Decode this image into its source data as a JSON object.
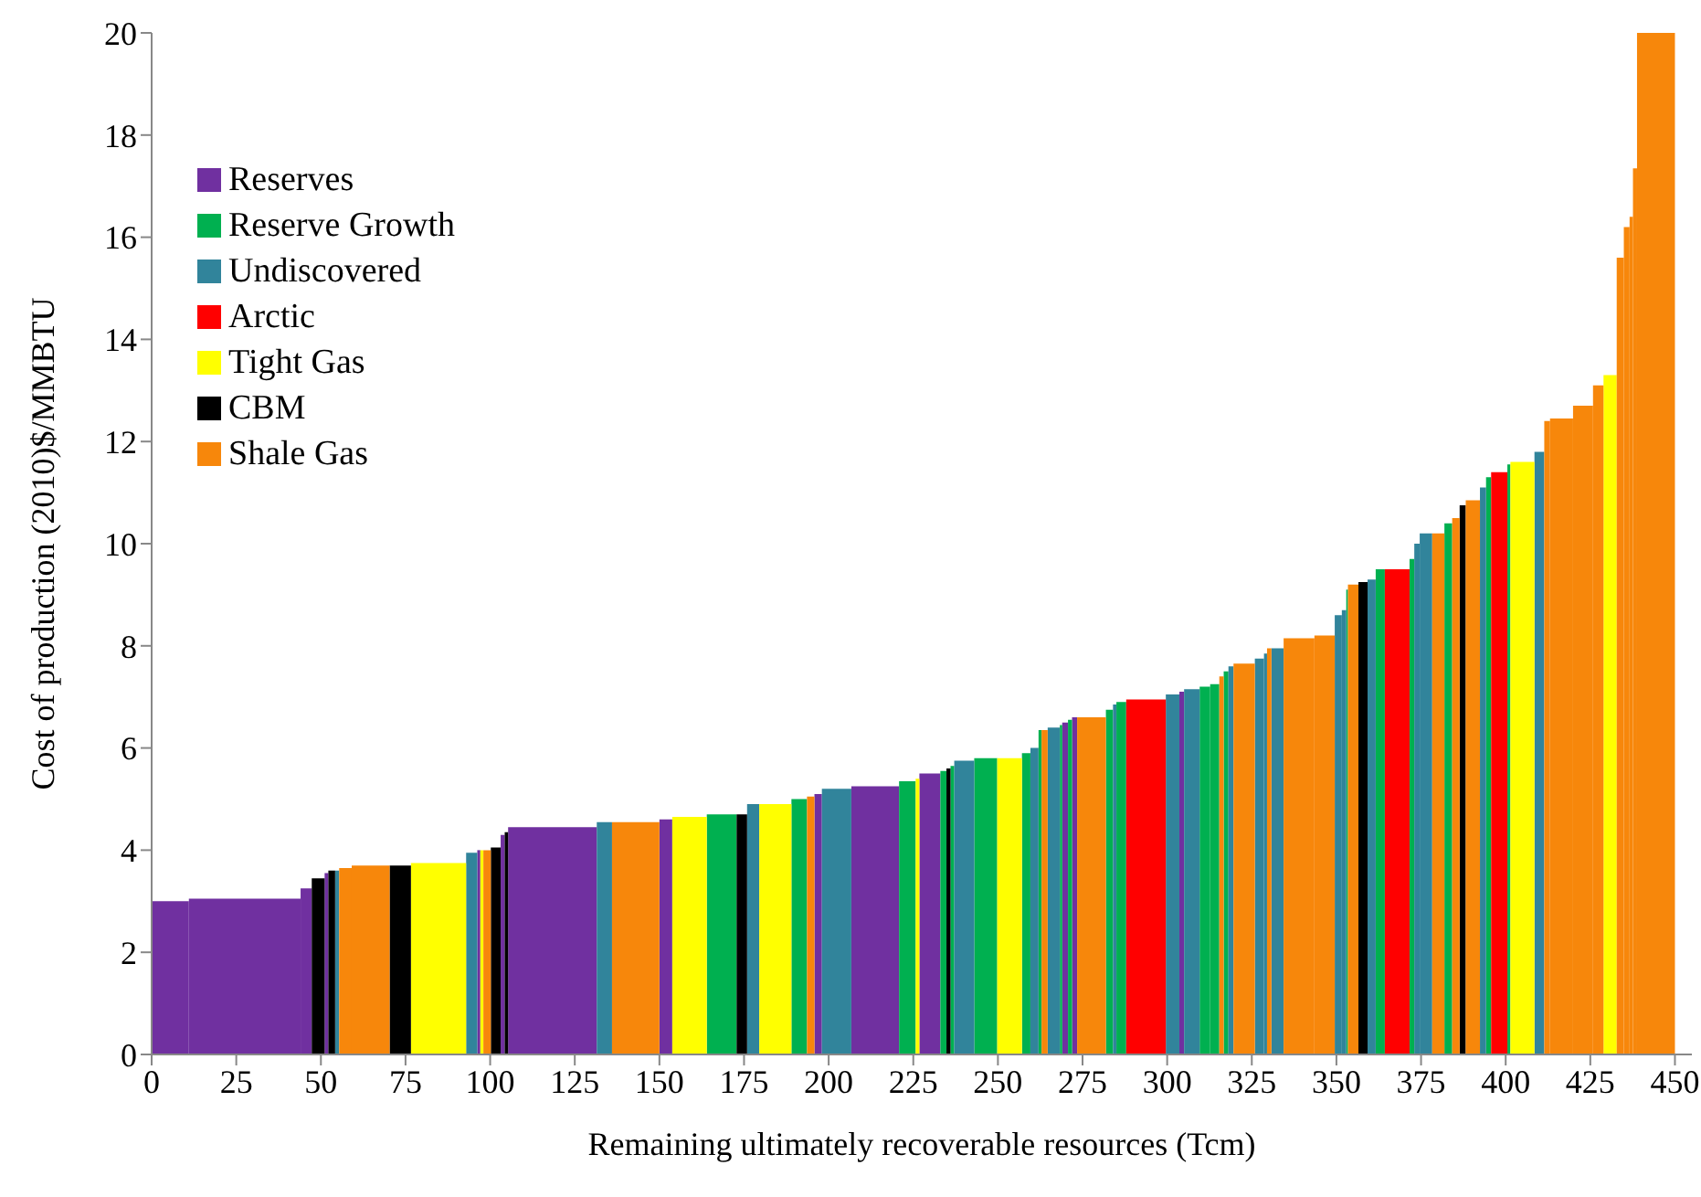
{
  "chart_data": {
    "type": "histogram",
    "xlabel": "Remaining ultimately recoverable resources (Tcm)",
    "ylabel": "Cost of production (2010)$/MMBTU",
    "xlim": [
      0,
      455
    ],
    "xticks": [
      0,
      25,
      50,
      75,
      100,
      125,
      150,
      175,
      200,
      225,
      250,
      275,
      300,
      325,
      350,
      375,
      400,
      425,
      450
    ],
    "ylim": [
      0,
      20
    ],
    "yticks": [
      0,
      2,
      4,
      6,
      8,
      10,
      12,
      14,
      16,
      18,
      20
    ],
    "legend": "top left",
    "bins": [
      0,
      11,
      44,
      47.3,
      51.1,
      52.2,
      54.2,
      55.4,
      59.1,
      70.3,
      76.6,
      92.9,
      96.2,
      97.1,
      98,
      100.2,
      103.1,
      104.3,
      105.3,
      131.5,
      136,
      150,
      153.8,
      164,
      172.8,
      175.9,
      179.5,
      189,
      193.6,
      195.8,
      198,
      206.7,
      220.8,
      225.7,
      226.8,
      233,
      234.8,
      236,
      237.1,
      243,
      249.8,
      257.1,
      259.6,
      262,
      262.9,
      264.7,
      268.3,
      269,
      270.7,
      271.9,
      273.4,
      281.9,
      284,
      285,
      287.9,
      299.6,
      303.6,
      305,
      309.6,
      312.7,
      315.4,
      316.7,
      318.1,
      319.6,
      325.9,
      328.6,
      329.5,
      330.8,
      334.4,
      343.5,
      349.5,
      351.6,
      352.9,
      353.4,
      356.5,
      359.2,
      361.6,
      364.3,
      371.6,
      373,
      374.6,
      378.3,
      381.9,
      384.2,
      386.4,
      388.2,
      392.4,
      394.2,
      395.7,
      400.5,
      401.4,
      408.5,
      411.4,
      413.1,
      419.9,
      425.8,
      428.9,
      432.8,
      434.9,
      436.6,
      437.6,
      438.8,
      450
    ],
    "series": [
      {
        "name": "Reserves",
        "color": "#7030a0",
        "values": [
          3.0,
          3.05,
          3.25,
          null,
          3.55,
          null,
          null,
          null,
          null,
          null,
          null,
          null,
          4,
          null,
          null,
          null,
          4.3,
          null,
          4.45,
          null,
          null,
          4.6,
          null,
          null,
          null,
          null,
          null,
          null,
          null,
          5.1,
          null,
          5.25,
          null,
          null,
          5.5,
          null,
          null,
          null,
          null,
          null,
          null,
          null,
          null,
          null,
          null,
          null,
          null,
          6.5,
          null,
          6.6,
          null,
          null,
          null,
          null,
          null,
          null,
          7.1,
          null,
          null,
          null,
          null,
          null,
          null,
          null,
          null,
          null,
          null,
          null,
          null,
          null,
          null,
          null,
          null,
          null,
          null,
          null,
          null,
          null,
          null,
          null,
          null,
          null,
          null,
          null,
          null,
          null,
          null,
          null,
          null,
          null,
          null,
          null,
          null,
          null,
          null,
          null,
          null,
          null,
          null,
          null,
          null,
          null
        ]
      },
      {
        "name": "Reserve Growth",
        "color": "#00b050",
        "values": [
          null,
          null,
          null,
          null,
          null,
          null,
          null,
          null,
          null,
          null,
          null,
          null,
          null,
          null,
          null,
          null,
          null,
          null,
          null,
          null,
          null,
          null,
          null,
          4.7,
          null,
          null,
          null,
          5,
          null,
          null,
          null,
          null,
          5.35,
          null,
          null,
          5.55,
          null,
          5.65,
          null,
          5.8,
          null,
          5.9,
          null,
          6.35,
          null,
          null,
          6.45,
          null,
          6.55,
          null,
          null,
          6.75,
          null,
          6.9,
          null,
          null,
          null,
          null,
          7.2,
          7.25,
          null,
          7.5,
          null,
          null,
          null,
          null,
          null,
          null,
          null,
          null,
          null,
          null,
          9.1,
          null,
          null,
          null,
          9.5,
          null,
          9.7,
          null,
          null,
          null,
          10.4,
          null,
          null,
          null,
          null,
          11.3,
          null,
          11.55,
          null,
          null,
          null,
          null,
          null,
          null,
          null,
          null,
          null,
          null,
          null,
          null
        ]
      },
      {
        "name": "Undiscovered",
        "color": "#31849b",
        "values": [
          null,
          null,
          null,
          null,
          null,
          null,
          3.6,
          null,
          null,
          null,
          null,
          3.95,
          null,
          null,
          null,
          null,
          null,
          null,
          null,
          4.55,
          null,
          null,
          null,
          null,
          null,
          4.9,
          null,
          null,
          null,
          null,
          5.2,
          null,
          null,
          null,
          null,
          null,
          null,
          null,
          5.75,
          null,
          null,
          null,
          6,
          null,
          null,
          6.4,
          null,
          null,
          null,
          null,
          null,
          null,
          6.85,
          null,
          null,
          7.05,
          null,
          7.15,
          null,
          null,
          null,
          null,
          7.6,
          null,
          7.75,
          7.85,
          null,
          7.95,
          null,
          null,
          8.6,
          8.7,
          null,
          null,
          null,
          9.3,
          null,
          null,
          null,
          10,
          10.2,
          null,
          null,
          null,
          null,
          null,
          11.1,
          null,
          null,
          null,
          null,
          11.8,
          null,
          null,
          null,
          null,
          null,
          null,
          null,
          null,
          null,
          null
        ]
      },
      {
        "name": "Arctic",
        "color": "#ff0000",
        "values": [
          null,
          null,
          null,
          null,
          null,
          null,
          null,
          null,
          null,
          null,
          null,
          null,
          null,
          null,
          null,
          null,
          null,
          null,
          null,
          null,
          null,
          null,
          null,
          null,
          null,
          null,
          null,
          null,
          null,
          null,
          null,
          null,
          null,
          null,
          null,
          null,
          null,
          null,
          null,
          null,
          null,
          null,
          null,
          null,
          null,
          null,
          null,
          null,
          null,
          null,
          null,
          null,
          null,
          null,
          6.95,
          null,
          null,
          null,
          null,
          null,
          null,
          null,
          null,
          null,
          null,
          null,
          null,
          null,
          null,
          null,
          null,
          null,
          null,
          null,
          null,
          null,
          null,
          9.5,
          null,
          null,
          null,
          null,
          null,
          null,
          null,
          null,
          null,
          null,
          11.4,
          null,
          null,
          null,
          null,
          null,
          null,
          null,
          null,
          null,
          null,
          null,
          null,
          null
        ]
      },
      {
        "name": "Tight Gas",
        "color": "#ffff00",
        "values": [
          null,
          null,
          null,
          null,
          null,
          null,
          null,
          null,
          null,
          null,
          3.75,
          null,
          null,
          4,
          null,
          null,
          null,
          null,
          null,
          null,
          null,
          null,
          4.65,
          null,
          null,
          null,
          4.9,
          null,
          null,
          null,
          null,
          null,
          null,
          5.4,
          null,
          null,
          null,
          null,
          null,
          null,
          5.8,
          null,
          null,
          null,
          null,
          null,
          null,
          null,
          null,
          null,
          null,
          null,
          null,
          null,
          null,
          null,
          null,
          null,
          null,
          null,
          null,
          null,
          null,
          null,
          null,
          null,
          null,
          null,
          null,
          null,
          null,
          null,
          null,
          null,
          null,
          null,
          null,
          null,
          null,
          null,
          null,
          null,
          null,
          null,
          null,
          null,
          null,
          null,
          null,
          null,
          11.6,
          null,
          null,
          null,
          null,
          null,
          13.3,
          null,
          null,
          null,
          null,
          null
        ]
      },
      {
        "name": "CBM",
        "color": "#000000",
        "values": [
          null,
          null,
          null,
          3.45,
          null,
          3.6,
          null,
          null,
          null,
          3.7,
          null,
          null,
          null,
          null,
          null,
          4.05,
          null,
          4.35,
          null,
          null,
          null,
          null,
          null,
          null,
          4.7,
          null,
          null,
          null,
          null,
          null,
          null,
          null,
          null,
          null,
          null,
          null,
          5.6,
          null,
          null,
          null,
          null,
          null,
          null,
          null,
          null,
          null,
          null,
          null,
          null,
          null,
          null,
          null,
          null,
          null,
          null,
          null,
          null,
          null,
          null,
          null,
          null,
          null,
          null,
          null,
          null,
          null,
          null,
          null,
          null,
          null,
          null,
          null,
          null,
          null,
          9.25,
          null,
          null,
          null,
          null,
          null,
          null,
          null,
          null,
          null,
          10.75,
          null,
          null,
          null,
          null,
          null,
          null,
          null,
          null,
          null,
          null,
          null,
          null,
          null,
          null,
          null,
          null,
          null
        ]
      },
      {
        "name": "Shale Gas",
        "color": "#f7870b",
        "values": [
          null,
          null,
          null,
          null,
          null,
          null,
          null,
          3.65,
          3.7,
          null,
          null,
          null,
          null,
          null,
          4,
          null,
          null,
          null,
          null,
          null,
          4.55,
          null,
          null,
          null,
          null,
          null,
          null,
          null,
          5.05,
          null,
          null,
          null,
          null,
          null,
          null,
          null,
          null,
          null,
          null,
          null,
          null,
          null,
          null,
          null,
          6.35,
          null,
          null,
          null,
          null,
          null,
          6.6,
          null,
          null,
          null,
          null,
          null,
          null,
          null,
          null,
          null,
          7.4,
          null,
          null,
          7.65,
          null,
          null,
          7.95,
          null,
          8.15,
          8.2,
          null,
          null,
          null,
          9.2,
          null,
          null,
          null,
          null,
          null,
          null,
          null,
          10.2,
          null,
          10.5,
          null,
          10.85,
          null,
          null,
          null,
          null,
          null,
          null,
          12.4,
          12.45,
          12.7,
          13.1,
          null,
          15.6,
          16.2,
          16.4,
          17.35,
          20
        ]
      }
    ]
  }
}
